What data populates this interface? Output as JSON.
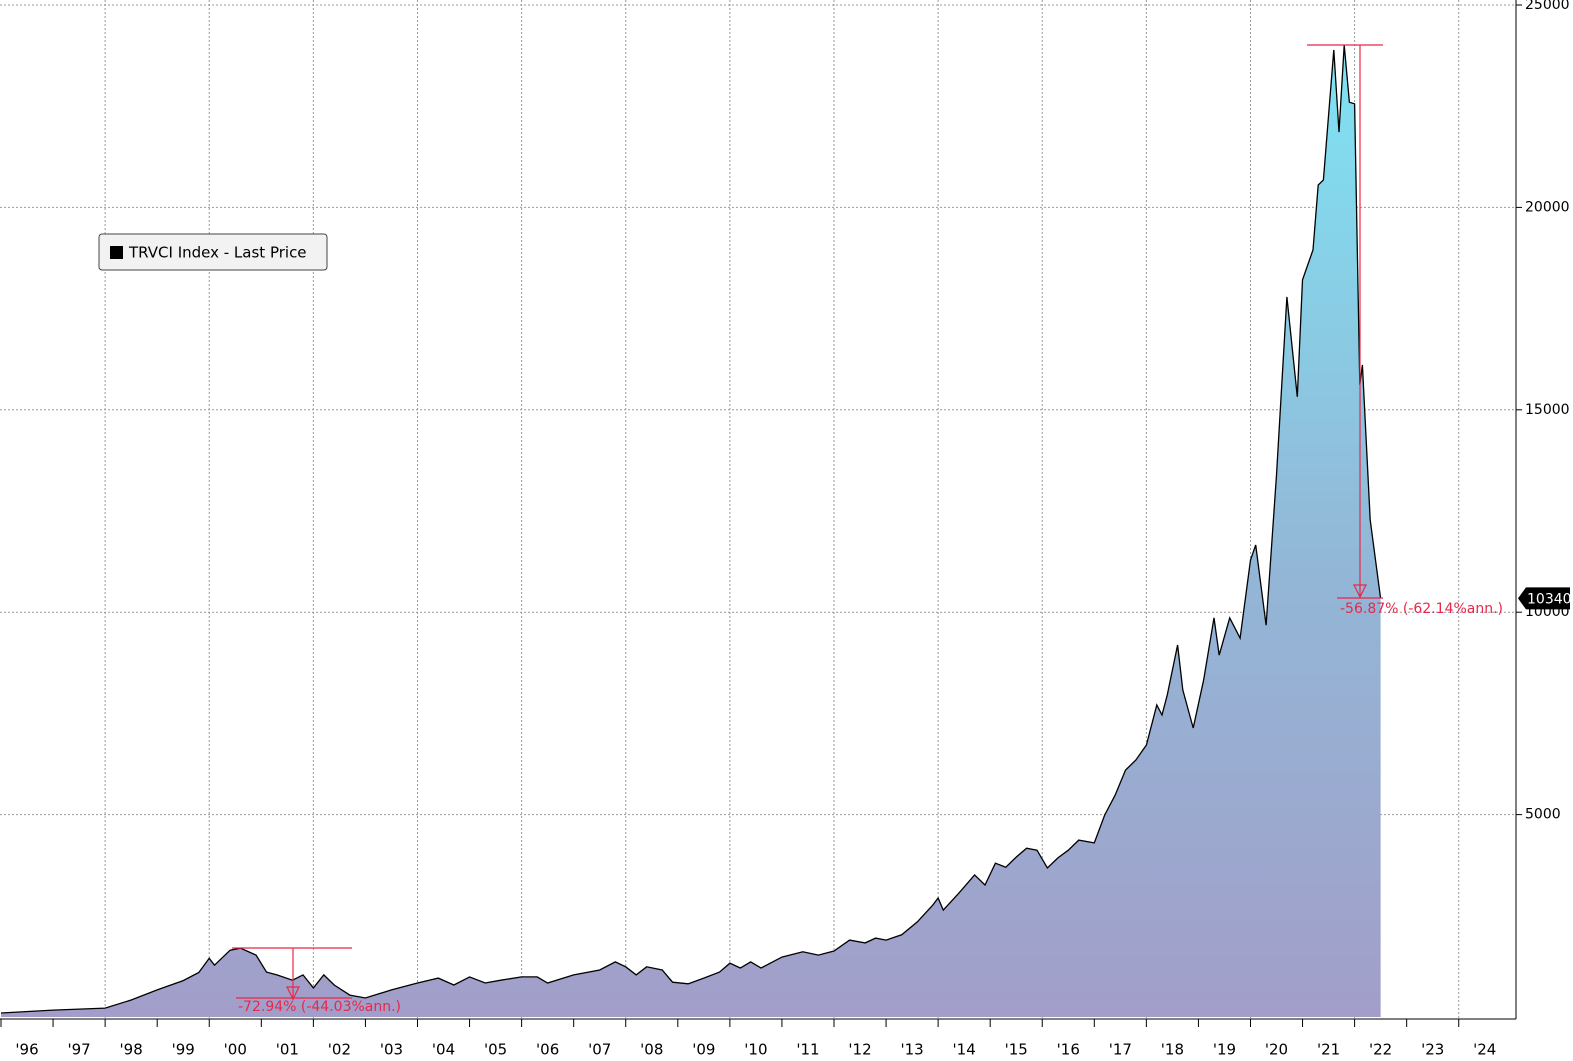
{
  "chart_data": {
    "type": "area",
    "legend": {
      "position": "upper left"
    },
    "series": [
      {
        "name": "TRVCI Index - Last Price",
        "color": "#000000",
        "x": [
          1996.0,
          1997.0,
          1998.0,
          1998.5,
          1999.0,
          1999.5,
          1999.8,
          2000.0,
          2000.1,
          2000.4,
          2000.6,
          2000.9,
          2001.1,
          2001.3,
          2001.6,
          2001.8,
          2002.0,
          2002.2,
          2002.4,
          2002.7,
          2003.0,
          2003.5,
          2004.0,
          2004.4,
          2004.7,
          2005.0,
          2005.3,
          2005.6,
          2006.0,
          2006.3,
          2006.5,
          2007.0,
          2007.5,
          2007.8,
          2008.0,
          2008.2,
          2008.4,
          2008.7,
          2008.9,
          2009.2,
          2009.5,
          2009.8,
          2010.0,
          2010.2,
          2010.4,
          2010.6,
          2011.0,
          2011.4,
          2011.7,
          2012.0,
          2012.3,
          2012.6,
          2012.8,
          2013.0,
          2013.3,
          2013.6,
          2013.9,
          2014.0,
          2014.1,
          2014.4,
          2014.7,
          2014.9,
          2015.1,
          2015.3,
          2015.5,
          2015.7,
          2015.9,
          2016.1,
          2016.3,
          2016.5,
          2016.7,
          2017.0,
          2017.2,
          2017.4,
          2017.6,
          2017.8,
          2018.0,
          2018.2,
          2018.3,
          2018.4,
          2018.6,
          2018.7,
          2018.9,
          2019.1,
          2019.3,
          2019.4,
          2019.6,
          2019.8,
          2020.0,
          2020.1,
          2020.3,
          2020.5,
          2020.7,
          2020.9,
          2021.0,
          2021.2,
          2021.3,
          2021.4,
          2021.6,
          2021.7,
          2021.8,
          2021.9,
          2022.0,
          2022.1,
          2022.15,
          2022.3,
          2022.5
        ],
        "values": [
          100,
          170,
          220,
          420,
          670,
          900,
          1100,
          1450,
          1280,
          1650,
          1700,
          1530,
          1110,
          1040,
          910,
          1040,
          720,
          1040,
          790,
          540,
          470,
          670,
          840,
          960,
          790,
          990,
          840,
          910,
          990,
          990,
          840,
          1040,
          1160,
          1360,
          1240,
          1040,
          1240,
          1160,
          860,
          820,
          960,
          1110,
          1330,
          1210,
          1360,
          1210,
          1480,
          1610,
          1530,
          1630,
          1900,
          1830,
          1950,
          1900,
          2030,
          2350,
          2770,
          2940,
          2640,
          3060,
          3510,
          3260,
          3800,
          3700,
          3950,
          4170,
          4120,
          3680,
          3930,
          4120,
          4370,
          4300,
          4990,
          5480,
          6100,
          6350,
          6720,
          7710,
          7460,
          7950,
          9190,
          8080,
          7140,
          8320,
          9860,
          8940,
          9860,
          9360,
          11290,
          11660,
          9680,
          13390,
          17790,
          15320,
          18210,
          18950,
          20550,
          20680,
          23890,
          21860,
          24010,
          22600,
          22560,
          15620,
          16110,
          12280,
          10340
        ]
      }
    ],
    "xlim": [
      1996,
      2025.1
    ],
    "xticks": [
      {
        "value": 1996.5,
        "label": "'96"
      },
      {
        "value": 1997.5,
        "label": "'97"
      },
      {
        "value": 1998.5,
        "label": "'98"
      },
      {
        "value": 1999.5,
        "label": "'99"
      },
      {
        "value": 2000.5,
        "label": "'00"
      },
      {
        "value": 2001.5,
        "label": "'01"
      },
      {
        "value": 2002.5,
        "label": "'02"
      },
      {
        "value": 2003.5,
        "label": "'03"
      },
      {
        "value": 2004.5,
        "label": "'04"
      },
      {
        "value": 2005.5,
        "label": "'05"
      },
      {
        "value": 2006.5,
        "label": "'06"
      },
      {
        "value": 2007.5,
        "label": "'07"
      },
      {
        "value": 2008.5,
        "label": "'08"
      },
      {
        "value": 2009.5,
        "label": "'09"
      },
      {
        "value": 2010.5,
        "label": "'10"
      },
      {
        "value": 2011.5,
        "label": "'11"
      },
      {
        "value": 2012.5,
        "label": "'12"
      },
      {
        "value": 2013.5,
        "label": "'13"
      },
      {
        "value": 2014.5,
        "label": "'14"
      },
      {
        "value": 2015.5,
        "label": "'15"
      },
      {
        "value": 2016.5,
        "label": "'16"
      },
      {
        "value": 2017.5,
        "label": "'17"
      },
      {
        "value": 2018.5,
        "label": "'18"
      },
      {
        "value": 2019.5,
        "label": "'19"
      },
      {
        "value": 2020.5,
        "label": "'20"
      },
      {
        "value": 2021.5,
        "label": "'21"
      },
      {
        "value": 2022.5,
        "label": "'22"
      },
      {
        "value": 2023.5,
        "label": "'23"
      },
      {
        "value": 2024.5,
        "label": "'24"
      }
    ],
    "ylim": [
      0,
      25000
    ],
    "yticks": [
      5000,
      10000,
      15000,
      20000,
      25000
    ],
    "grid": true,
    "annotations": [
      "-72.94% (-44.03%ann.)",
      "-56.87% (-62.14%ann.)"
    ]
  }
}
